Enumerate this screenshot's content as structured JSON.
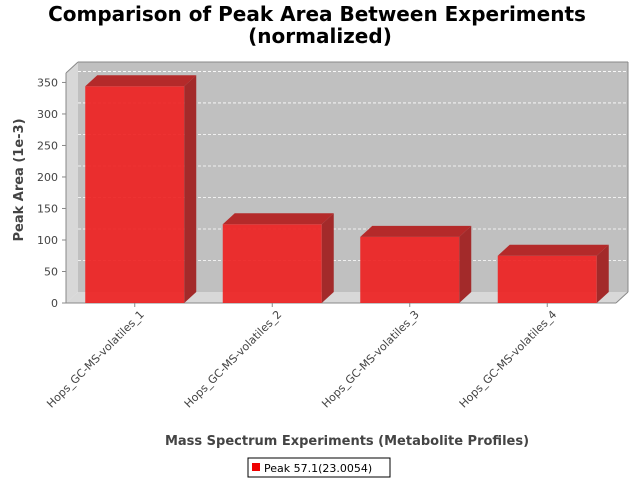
{
  "chart_data": {
    "type": "bar",
    "title": "Comparison of Peak Area Between Experiments",
    "subtitle": "(normalized)",
    "xlabel": "Mass Spectrum Experiments (Metabolite Profiles)",
    "ylabel": "Peak Area (1e-3)",
    "categories": [
      "Hops_GC-MS-volatiles_1",
      "Hops_GC-MS-volatiles_2",
      "Hops_GC-MS-volatiles_3",
      "Hops_GC-MS-volatiles_4"
    ],
    "series": [
      {
        "name": "Peak 57.1(23.0054)",
        "values": [
          344,
          125,
          105,
          75
        ],
        "color": "#ee2222"
      }
    ],
    "yticks": [
      0,
      50,
      100,
      150,
      200,
      250,
      300,
      350
    ],
    "ylim": [
      0,
      365
    ],
    "grid": true,
    "legend_position": "bottom",
    "plot_background": "#c0c0c0"
  }
}
